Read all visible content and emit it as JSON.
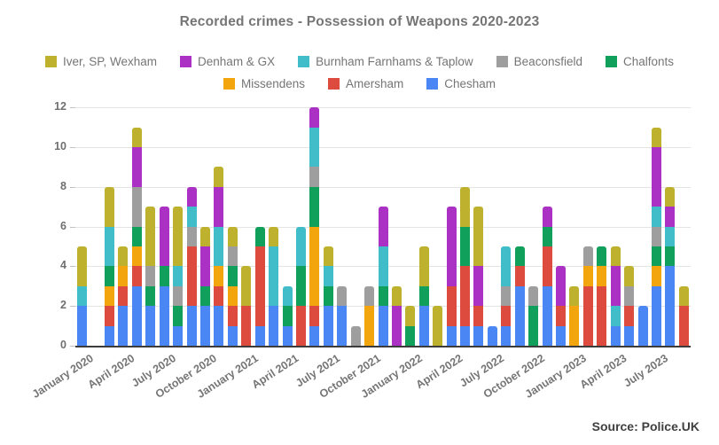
{
  "title": "Recorded crimes - Possession of Weapons 2020-2023",
  "source": "Source: Police.UK",
  "chart_data": {
    "type": "bar",
    "stacked": true,
    "title": "Recorded crimes - Possession of Weapons 2020-2023",
    "ylim": [
      0,
      12
    ],
    "yticks": [
      0,
      2,
      4,
      6,
      8,
      10,
      12
    ],
    "grid": true,
    "legend_position": "top",
    "tick_every": 3,
    "categories": [
      "January 2020",
      "February 2020",
      "March 2020",
      "April 2020",
      "May 2020",
      "June 2020",
      "July 2020",
      "August 2020",
      "September 2020",
      "October 2020",
      "November 2020",
      "December 2020",
      "January 2021",
      "February 2021",
      "March 2021",
      "April 2021",
      "May 2021",
      "June 2021",
      "July 2021",
      "August 2021",
      "September 2021",
      "October 2021",
      "November 2021",
      "December 2021",
      "January 2022",
      "February 2022",
      "March 2022",
      "April 2022",
      "May 2022",
      "June 2022",
      "July 2022",
      "August 2022",
      "September 2022",
      "October 2022",
      "November 2022",
      "December 2022",
      "January 2023",
      "February 2023",
      "March 2023",
      "April 2023",
      "May 2023",
      "June 2023",
      "July 2023",
      "August 2023",
      "September 2023"
    ],
    "visible_ticks": [
      "January 2020",
      "April 2020",
      "July 2020",
      "October 2020",
      "January 2021",
      "April 2021",
      "July 2021",
      "October 2021",
      "January 2022",
      "April 2022",
      "July 2022",
      "October 2022",
      "January 2023",
      "April 2023",
      "July 2023"
    ],
    "series": [
      {
        "name": "Chesham",
        "color": "#4a86f4",
        "values": [
          2,
          0,
          1,
          2,
          3,
          2,
          3,
          1,
          2,
          2,
          2,
          1,
          0,
          1,
          2,
          1,
          0,
          1,
          2,
          2,
          0,
          0,
          2,
          0,
          0,
          2,
          0,
          1,
          1,
          1,
          1,
          1,
          3,
          0,
          3,
          1,
          0,
          0,
          0,
          1,
          1,
          2,
          3,
          4,
          0
        ]
      },
      {
        "name": "Amersham",
        "color": "#dc4b3e",
        "values": [
          0,
          0,
          1,
          1,
          1,
          0,
          0,
          0,
          3,
          0,
          1,
          1,
          2,
          4,
          0,
          0,
          2,
          1,
          0,
          0,
          0,
          0,
          0,
          0,
          0,
          0,
          0,
          2,
          3,
          1,
          0,
          1,
          1,
          0,
          2,
          1,
          0,
          3,
          3,
          0,
          1,
          0,
          0,
          0,
          2
        ]
      },
      {
        "name": "Missendens",
        "color": "#f3a50e",
        "values": [
          0,
          0,
          1,
          1,
          1,
          0,
          0,
          0,
          0,
          0,
          1,
          1,
          0,
          0,
          0,
          0,
          0,
          4,
          0,
          0,
          0,
          2,
          0,
          0,
          0,
          0,
          0,
          0,
          0,
          0,
          0,
          0,
          0,
          0,
          0,
          0,
          2,
          1,
          1,
          0,
          0,
          0,
          1,
          0,
          0
        ]
      },
      {
        "name": "Chalfonts",
        "color": "#11a05b",
        "values": [
          0,
          0,
          1,
          0,
          1,
          1,
          1,
          1,
          0,
          1,
          0,
          1,
          0,
          1,
          0,
          1,
          2,
          2,
          1,
          0,
          0,
          0,
          1,
          0,
          1,
          1,
          0,
          0,
          2,
          0,
          0,
          0,
          1,
          2,
          1,
          0,
          0,
          0,
          1,
          0,
          0,
          0,
          1,
          1,
          0
        ]
      },
      {
        "name": "Beaconsfield",
        "color": "#9e9e9e",
        "values": [
          0,
          0,
          0,
          0,
          2,
          1,
          0,
          1,
          1,
          0,
          0,
          1,
          0,
          0,
          0,
          0,
          0,
          1,
          0,
          1,
          1,
          1,
          0,
          0,
          0,
          0,
          0,
          0,
          0,
          0,
          0,
          1,
          0,
          1,
          0,
          0,
          0,
          1,
          0,
          0,
          1,
          0,
          1,
          0,
          0
        ]
      },
      {
        "name": "Burnham Farnhams & Taplow",
        "color": "#41bdc9",
        "values": [
          1,
          0,
          2,
          0,
          0,
          0,
          0,
          1,
          1,
          0,
          2,
          0,
          0,
          0,
          3,
          1,
          2,
          2,
          1,
          0,
          0,
          0,
          2,
          0,
          0,
          0,
          0,
          0,
          0,
          0,
          0,
          2,
          0,
          0,
          0,
          0,
          0,
          0,
          0,
          1,
          0,
          0,
          1,
          1,
          0
        ]
      },
      {
        "name": "Denham & GX",
        "color": "#ab30c4",
        "values": [
          0,
          0,
          0,
          0,
          2,
          0,
          3,
          0,
          1,
          2,
          2,
          0,
          0,
          0,
          0,
          0,
          0,
          1,
          0,
          0,
          0,
          0,
          2,
          2,
          0,
          0,
          0,
          4,
          0,
          2,
          0,
          0,
          0,
          0,
          1,
          2,
          0,
          0,
          0,
          2,
          0,
          0,
          3,
          1,
          0
        ]
      },
      {
        "name": "Iver, SP, Wexham",
        "color": "#bdb12d",
        "values": [
          2,
          0,
          2,
          1,
          1,
          3,
          0,
          3,
          0,
          1,
          1,
          1,
          2,
          0,
          1,
          0,
          0,
          0,
          1,
          0,
          0,
          0,
          0,
          1,
          1,
          2,
          2,
          0,
          2,
          3,
          0,
          0,
          0,
          0,
          0,
          0,
          1,
          0,
          0,
          1,
          1,
          0,
          1,
          1,
          1
        ]
      }
    ],
    "legend_rows": [
      [
        "Iver, SP, Wexham",
        "Denham & GX",
        "Burnham Farnhams & Taplow",
        "Beaconsfield",
        "Chalfonts"
      ],
      [
        "Missendens",
        "Amersham",
        "Chesham"
      ]
    ]
  }
}
